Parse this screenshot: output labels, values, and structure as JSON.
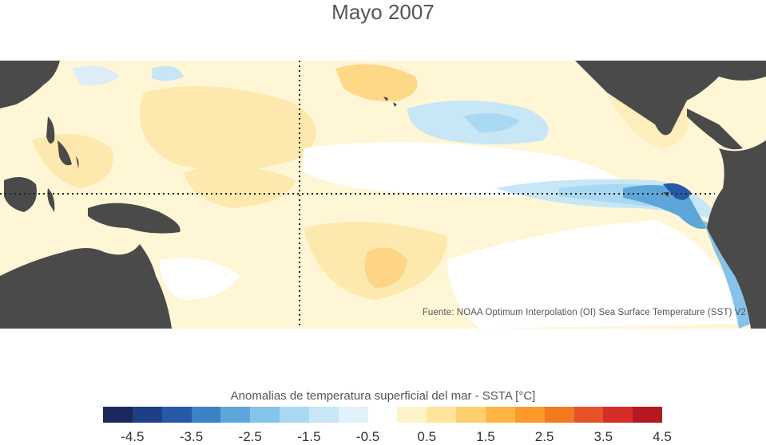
{
  "title": "Mayo 2007",
  "map": {
    "source_note": "Fuente: NOAA Optimum Interpolation (OI) Sea Surface Temperature (SST) V2",
    "land_color": "#4a4a4a"
  },
  "colorbar": {
    "title": "Anomalias de temperatura superficial del mar - SSTA  [°C]",
    "colors": [
      "#1b2a5e",
      "#1f3f85",
      "#2659a8",
      "#3c82c4",
      "#5ca6da",
      "#86c3ea",
      "#a9d8f2",
      "#c7e6f6",
      "#e2f1fa",
      "#ffffff",
      "#fff3c9",
      "#fee49c",
      "#fdcf6c",
      "#fdb543",
      "#fb9a2a",
      "#f47a22",
      "#e6532a",
      "#d62d28",
      "#b5181f"
    ],
    "tick_labels": [
      "-4.5",
      "-3.5",
      "-2.5",
      "-1.5",
      "-0.5",
      "0.5",
      "1.5",
      "2.5",
      "3.5",
      "4.5"
    ]
  }
}
